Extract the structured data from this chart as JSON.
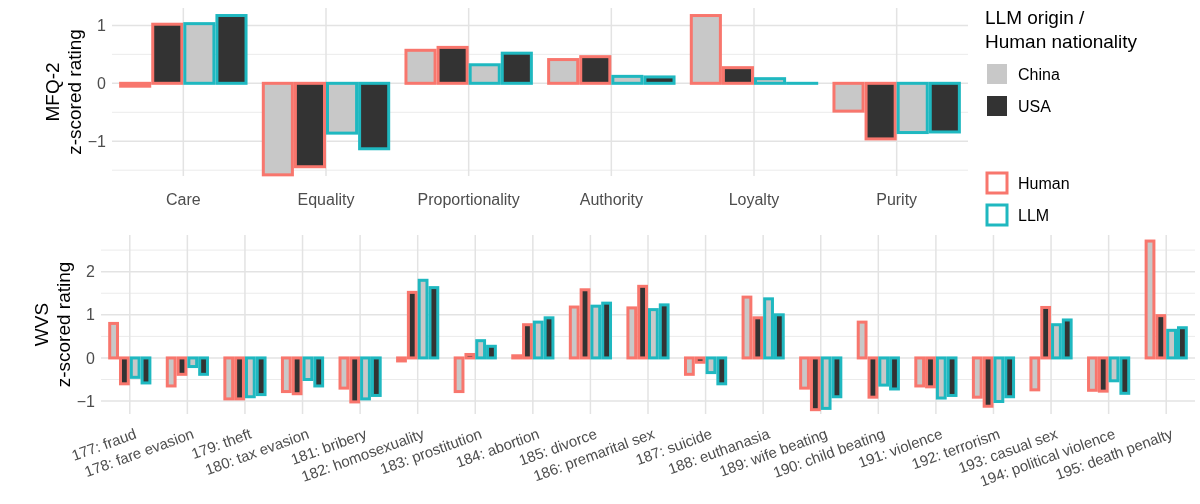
{
  "chart_data": [
    {
      "type": "bar",
      "ylabel": "MFQ-2\nz-scored rating",
      "categories": [
        "Care",
        "Equality",
        "Proportionality",
        "Authority",
        "Loyalty",
        "Purity"
      ],
      "series": [
        {
          "name": "China",
          "color": "#c8c8c8",
          "values": [
            -0.05,
            -1.58,
            0.57,
            0.41,
            1.17,
            -0.48
          ]
        },
        {
          "name": "USA",
          "color": "#333333",
          "values": [
            1.02,
            -1.44,
            0.62,
            0.46,
            0.27,
            -0.96
          ]
        },
        {
          "color": "#c8c8c8",
          "values": [
            1.03,
            -0.86,
            0.32,
            0.12,
            0.08,
            -0.85
          ]
        },
        {
          "color": "#333333",
          "values": [
            1.17,
            -1.13,
            0.52,
            0.11,
            0.0,
            -0.84
          ]
        }
      ],
      "ylim": [
        -1.6,
        1.3
      ],
      "yticks": [
        -1,
        0,
        1
      ],
      "grid": true,
      "legend": "right",
      "legend_title": "LLM origin /\nHuman nationality",
      "annotations": [
        "Human",
        "LLM"
      ]
    },
    {
      "type": "bar",
      "ylabel": "WVS\nz-scored rating",
      "categories": [
        "177: fraud",
        "178: fare evasion",
        "179: theft",
        "180: tax evasion",
        "181: bribery",
        "182: homosexuality",
        "183: prostitution",
        "184: abortion",
        "185: divorce",
        "186: premarital sex",
        "187: suicide",
        "188: euthanasia",
        "189: wife beating",
        "190: child beating",
        "191: violence",
        "192: terrorism",
        "193: casual sex",
        "194: political violence",
        "195: death penalty"
      ],
      "series": [
        {
          "color": "#c8c8c8",
          "values": [
            0.8,
            -0.65,
            -0.95,
            -0.78,
            -0.7,
            -0.07,
            -0.78,
            0.05,
            1.18,
            1.16,
            -0.38,
            1.41,
            -0.7,
            0.83,
            -0.65,
            -0.91,
            -0.74,
            -0.75,
            2.71
          ]
        },
        {
          "color": "#333333",
          "values": [
            -0.6,
            -0.38,
            -0.95,
            -0.83,
            -1.02,
            1.52,
            0.08,
            0.77,
            1.58,
            1.66,
            -0.1,
            0.93,
            -1.2,
            -0.91,
            -0.67,
            -1.12,
            1.17,
            -0.77,
            0.98
          ]
        },
        {
          "color": "#c8c8c8",
          "values": [
            -0.45,
            -0.2,
            -0.9,
            -0.5,
            -0.95,
            1.8,
            0.4,
            0.83,
            1.2,
            1.12,
            -0.34,
            1.37,
            -1.17,
            -0.63,
            -0.93,
            -1.01,
            0.77,
            -0.53,
            0.64
          ]
        },
        {
          "color": "#333333",
          "values": [
            -0.58,
            -0.38,
            -0.85,
            -0.65,
            -0.87,
            1.63,
            0.27,
            0.93,
            1.27,
            1.23,
            -0.6,
            1.0,
            -0.9,
            -0.72,
            -0.87,
            -0.9,
            0.88,
            -0.82,
            0.7
          ]
        }
      ],
      "ylim": [
        -1.3,
        2.85
      ],
      "yticks": [
        -1,
        0,
        1,
        2
      ],
      "grid": true
    }
  ]
}
